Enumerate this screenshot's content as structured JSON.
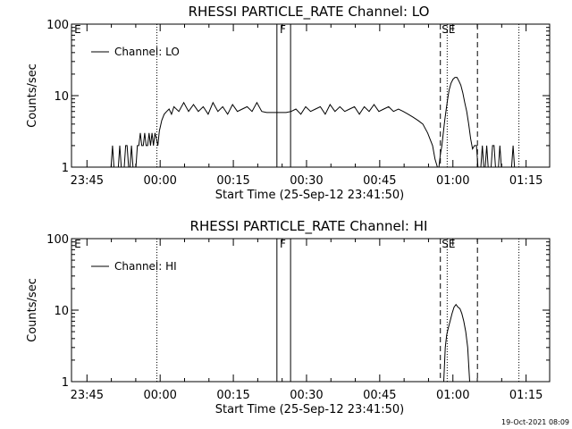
{
  "footer": "19-Oct-2021 08:09",
  "chart_data": [
    {
      "type": "line",
      "title": "RHESSI PARTICLE_RATE Channel: LO",
      "xlabel": "Start Time (25-Sep-12 23:41:50)",
      "ylabel": "Counts/sec",
      "yscale": "log",
      "ylim": [
        1,
        100
      ],
      "xlim_minutes_from_start": [
        0,
        98
      ],
      "x_tick_labels": [
        "23:45",
        "00:00",
        "00:15",
        "00:30",
        "00:45",
        "01:00",
        "01:15"
      ],
      "x_tick_minutes": [
        3.17,
        18.17,
        33.17,
        48.17,
        63.17,
        78.17,
        93.17
      ],
      "y_tick_labels": [
        "1",
        "10",
        "100"
      ],
      "y_ticks": [
        1,
        10,
        100
      ],
      "legend": "Channel: LO",
      "region_labels": [
        {
          "text": "E",
          "minute": 0.4
        },
        {
          "text": "F",
          "minute": 42.5
        },
        {
          "text": "SE",
          "minute": 75.7
        }
      ],
      "vlines": [
        {
          "minute": 17.5,
          "style": "dotted"
        },
        {
          "minute": 42.1,
          "style": "solid"
        },
        {
          "minute": 44.9,
          "style": "solid"
        },
        {
          "minute": 75.6,
          "style": "dashed"
        },
        {
          "minute": 77.0,
          "style": "dotted"
        },
        {
          "minute": 83.2,
          "style": "dashed"
        },
        {
          "minute": 91.7,
          "style": "dotted"
        }
      ],
      "series": [
        {
          "x": [
            7.5,
            7.8,
            8.1,
            8.4,
            8.7,
            9.0,
            9.3,
            9.6,
            9.9,
            10.2,
            10.5,
            10.8,
            11.1,
            11.4,
            11.7,
            12.0,
            12.3,
            12.6,
            12.9,
            13.2,
            13.5,
            13.8,
            14.1,
            14.4,
            14.7,
            15.0,
            15.3,
            15.6,
            15.9,
            16.2,
            16.5,
            16.8,
            17.1,
            17.4,
            17.7,
            18.0,
            18.5,
            19.0,
            19.5,
            20.0,
            20.5,
            21,
            22,
            23,
            24,
            25,
            26,
            27,
            28,
            29,
            30,
            31,
            32,
            33,
            34,
            35,
            36,
            37,
            38,
            39,
            40,
            41,
            42,
            43,
            44,
            45,
            46,
            47,
            48,
            49,
            50,
            51,
            52,
            53,
            54,
            55,
            56,
            57,
            58,
            59,
            60,
            61,
            62,
            63,
            64,
            65,
            66,
            67,
            68,
            69,
            70,
            71,
            72,
            73,
            74,
            74.5,
            75,
            75.3,
            75.6,
            75.9,
            76.2,
            76.5,
            76.8,
            77.1,
            77.4,
            77.8,
            78.2,
            78.6,
            79.0,
            79.4,
            79.8,
            80.2,
            80.6,
            81.0,
            81.4,
            81.8,
            82.2,
            82.6,
            83.0,
            83.3,
            83.6,
            83.9,
            84.2,
            84.5,
            84.8,
            85.1,
            85.4,
            85.7,
            86.0,
            86.3,
            86.6,
            86.9,
            87.2,
            87.5,
            87.8,
            88.1,
            88.4,
            88.7,
            89.0,
            89.3,
            89.6,
            89.9,
            90.2,
            90.5,
            90.8,
            91.1,
            91.4,
            91.7
          ],
          "y": [
            1,
            1,
            1,
            2,
            1,
            1,
            1,
            1,
            2,
            1,
            1,
            1,
            2,
            2,
            1,
            1,
            2,
            1,
            1,
            1,
            2,
            2,
            3,
            2,
            2,
            3,
            2,
            2,
            3,
            2,
            3,
            2,
            3,
            2.5,
            2,
            3.2,
            4.5,
            5.5,
            6,
            6.5,
            5.5,
            7,
            6,
            8,
            6,
            7.5,
            6,
            7,
            5.5,
            8,
            6,
            7,
            5.5,
            7.5,
            6,
            6.5,
            7,
            6,
            8,
            6,
            5.8,
            5.8,
            5.8,
            5.8,
            5.8,
            6,
            6.5,
            5.5,
            7,
            6,
            6.5,
            7,
            5.5,
            7.5,
            6,
            7,
            6,
            6.5,
            7,
            5.5,
            7,
            6,
            7.5,
            6,
            6.5,
            7,
            6,
            6.5,
            6,
            5.5,
            5,
            4.5,
            4,
            3,
            2,
            1.3,
            1,
            1,
            1.5,
            2,
            3,
            4.5,
            6.5,
            9,
            12,
            15,
            17,
            18,
            18,
            16,
            14,
            11,
            8,
            6,
            4,
            2.5,
            1.8,
            2,
            2,
            1,
            1,
            1,
            2,
            1,
            1,
            2,
            1,
            1,
            1,
            2,
            2,
            1,
            1,
            1,
            2,
            1,
            1,
            1,
            1,
            1,
            1,
            1,
            1,
            2,
            1,
            1,
            1,
            1
          ]
        }
      ]
    },
    {
      "type": "line",
      "title": "RHESSI PARTICLE_RATE Channel: HI",
      "xlabel": "Start Time (25-Sep-12 23:41:50)",
      "ylabel": "Counts/sec",
      "yscale": "log",
      "ylim": [
        1,
        100
      ],
      "xlim_minutes_from_start": [
        0,
        98
      ],
      "x_tick_labels": [
        "23:45",
        "00:00",
        "00:15",
        "00:30",
        "00:45",
        "01:00",
        "01:15"
      ],
      "x_tick_minutes": [
        3.17,
        18.17,
        33.17,
        48.17,
        63.17,
        78.17,
        93.17
      ],
      "y_tick_labels": [
        "1",
        "10",
        "100"
      ],
      "y_ticks": [
        1,
        10,
        100
      ],
      "legend": "Channel: HI",
      "region_labels": [
        {
          "text": "E",
          "minute": 0.4
        },
        {
          "text": "F",
          "minute": 42.5
        },
        {
          "text": "SE",
          "minute": 75.7
        }
      ],
      "vlines": [
        {
          "minute": 17.5,
          "style": "dotted"
        },
        {
          "minute": 42.1,
          "style": "solid"
        },
        {
          "minute": 44.9,
          "style": "solid"
        },
        {
          "minute": 75.6,
          "style": "dashed"
        },
        {
          "minute": 77.0,
          "style": "dotted"
        },
        {
          "minute": 83.2,
          "style": "dashed"
        },
        {
          "minute": 91.7,
          "style": "dotted"
        }
      ],
      "series": [
        {
          "x": [
            76.3,
            76.6,
            76.9,
            77.2,
            77.6,
            78.0,
            78.4,
            78.8,
            79.2,
            79.6,
            80.0,
            80.4,
            80.8,
            81.2,
            81.6
          ],
          "y": [
            1,
            3,
            4.5,
            5.5,
            7,
            9,
            11,
            12,
            11,
            10.5,
            9,
            7,
            5,
            3,
            1
          ]
        }
      ]
    }
  ]
}
